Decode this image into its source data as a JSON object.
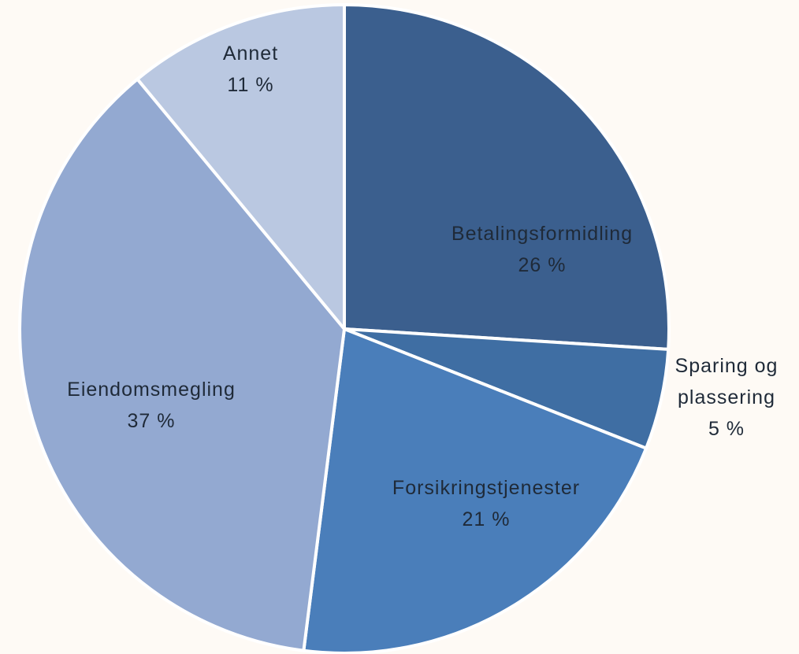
{
  "chart_data": {
    "type": "pie",
    "categories": [
      "Betalingsformidling",
      "Sparing og plassering",
      "Forsikringstjenester",
      "Eiendomsmegling",
      "Annet"
    ],
    "values": [
      26,
      5,
      21,
      37,
      11
    ],
    "value_labels": [
      "26 %",
      "5 %",
      "21 %",
      "37 %",
      "11 %"
    ],
    "colors": [
      "#3b5f8e",
      "#3f6ea3",
      "#4a7eba",
      "#93a9d1",
      "#bac8e1"
    ]
  }
}
